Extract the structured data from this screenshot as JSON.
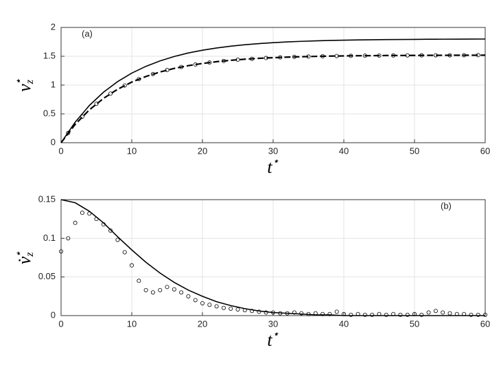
{
  "chart_data": [
    {
      "type": "line",
      "annotation": "(a)",
      "xlabel": {
        "base": "t",
        "sup": "⋆"
      },
      "ylabel": {
        "base": "v",
        "sub": "z",
        "sup": "⋆"
      },
      "xlim": [
        0,
        60
      ],
      "xticks": [
        0,
        10,
        20,
        30,
        40,
        50,
        60
      ],
      "ylim": [
        0,
        2
      ],
      "yticks": [
        0,
        0.5,
        1,
        1.5,
        2
      ],
      "grid": true,
      "series": [
        {
          "color": "#000000",
          "style": "solid",
          "x": [
            0,
            2,
            4,
            6,
            8,
            10,
            12,
            14,
            16,
            18,
            20,
            22,
            24,
            26,
            28,
            30,
            32,
            34,
            36,
            38,
            40,
            42,
            44,
            46,
            48,
            50,
            52,
            54,
            56,
            58,
            60
          ],
          "values": [
            0,
            0.358,
            0.646,
            0.876,
            1.06,
            1.208,
            1.325,
            1.42,
            1.496,
            1.557,
            1.605,
            1.644,
            1.675,
            1.7,
            1.72,
            1.736,
            1.749,
            1.759,
            1.767,
            1.774,
            1.779,
            1.783,
            1.787,
            1.789,
            1.791,
            1.793,
            1.795,
            1.796,
            1.797,
            1.798,
            1.799
          ]
        },
        {
          "color": "#000000",
          "style": "dashed",
          "x": [
            0,
            2,
            4,
            6,
            8,
            10,
            12,
            14,
            16,
            18,
            20,
            22,
            24,
            26,
            28,
            30,
            32,
            34,
            36,
            38,
            40,
            42,
            44,
            46,
            48,
            50,
            52,
            54,
            56,
            58,
            60
          ],
          "values": [
            0,
            0.319,
            0.57,
            0.769,
            0.927,
            1.052,
            1.149,
            1.227,
            1.289,
            1.337,
            1.375,
            1.406,
            1.43,
            1.449,
            1.464,
            1.475,
            1.485,
            1.492,
            1.498,
            1.503,
            1.506,
            1.509,
            1.511,
            1.513,
            1.514,
            1.515,
            1.516,
            1.517,
            1.518,
            1.518,
            1.519
          ]
        },
        {
          "color": "#000000",
          "style": "none",
          "marker": "circle",
          "x": [
            1,
            3,
            5,
            7,
            9,
            11,
            13,
            15,
            17,
            19,
            21,
            23,
            25,
            27,
            29,
            31,
            33,
            35,
            37,
            39,
            41,
            43,
            45,
            47,
            49,
            51,
            53,
            55,
            57,
            59
          ],
          "values": [
            0.169,
            0.452,
            0.676,
            0.853,
            0.993,
            1.103,
            1.19,
            1.26,
            1.314,
            1.357,
            1.391,
            1.418,
            1.44,
            1.456,
            1.47,
            1.48,
            1.489,
            1.495,
            1.5,
            1.505,
            1.507,
            1.51,
            1.512,
            1.513,
            1.515,
            1.516,
            1.517,
            1.517,
            1.518,
            1.519
          ]
        }
      ]
    },
    {
      "type": "line",
      "annotation": "(b)",
      "xlabel": {
        "base": "t",
        "sup": "⋆"
      },
      "ylabel": {
        "base": "v̇",
        "sub": "z",
        "sup": "⋆"
      },
      "xlim": [
        0,
        60
      ],
      "xticks": [
        0,
        10,
        20,
        30,
        40,
        50,
        60
      ],
      "ylim": [
        0,
        0.15
      ],
      "yticks": [
        0,
        0.05,
        0.1,
        0.15
      ],
      "grid": true,
      "series": [
        {
          "color": "#000000",
          "style": "solid",
          "x": [
            0,
            2,
            4,
            6,
            8,
            10,
            12,
            14,
            16,
            18,
            20,
            22,
            24,
            26,
            28,
            30,
            32,
            34,
            36,
            38,
            40,
            42,
            44,
            46,
            48,
            50,
            52,
            54,
            56,
            58,
            60
          ],
          "values": [
            0.15,
            0.146,
            0.135,
            0.12,
            0.102,
            0.085,
            0.069,
            0.055,
            0.043,
            0.033,
            0.025,
            0.018,
            0.013,
            0.009,
            0.006,
            0.004,
            0.003,
            0.002,
            0.001,
            0.001,
            0,
            0,
            0,
            0,
            0,
            0,
            0,
            0,
            0,
            0,
            0
          ]
        },
        {
          "color": "#000000",
          "style": "none",
          "marker": "circle",
          "x": [
            0,
            1,
            2,
            3,
            4,
            5,
            6,
            7,
            8,
            9,
            10,
            11,
            12,
            13,
            14,
            15,
            16,
            17,
            18,
            19,
            20,
            21,
            22,
            23,
            24,
            25,
            26,
            27,
            28,
            29,
            30,
            31,
            32,
            33,
            34,
            35,
            36,
            37,
            38,
            39,
            40,
            41,
            42,
            43,
            44,
            45,
            46,
            47,
            48,
            49,
            50,
            51,
            52,
            53,
            54,
            55,
            56,
            57,
            58,
            59,
            60
          ],
          "values": [
            0.083,
            0.1,
            0.12,
            0.133,
            0.132,
            0.125,
            0.118,
            0.11,
            0.098,
            0.082,
            0.065,
            0.045,
            0.033,
            0.03,
            0.033,
            0.037,
            0.034,
            0.03,
            0.025,
            0.02,
            0.016,
            0.014,
            0.012,
            0.01,
            0.009,
            0.008,
            0.007,
            0.006,
            0.005,
            0.004,
            0.004,
            0.003,
            0.003,
            0.004,
            0.003,
            0.002,
            0.003,
            0.002,
            0.002,
            0.005,
            0.002,
            0.001,
            0.002,
            0.001,
            0.001,
            0.002,
            0.001,
            0.002,
            0.001,
            0.001,
            0.002,
            0.001,
            0.004,
            0.006,
            0.004,
            0.003,
            0.002,
            0.002,
            0.001,
            0.001,
            0.001
          ]
        }
      ]
    }
  ]
}
